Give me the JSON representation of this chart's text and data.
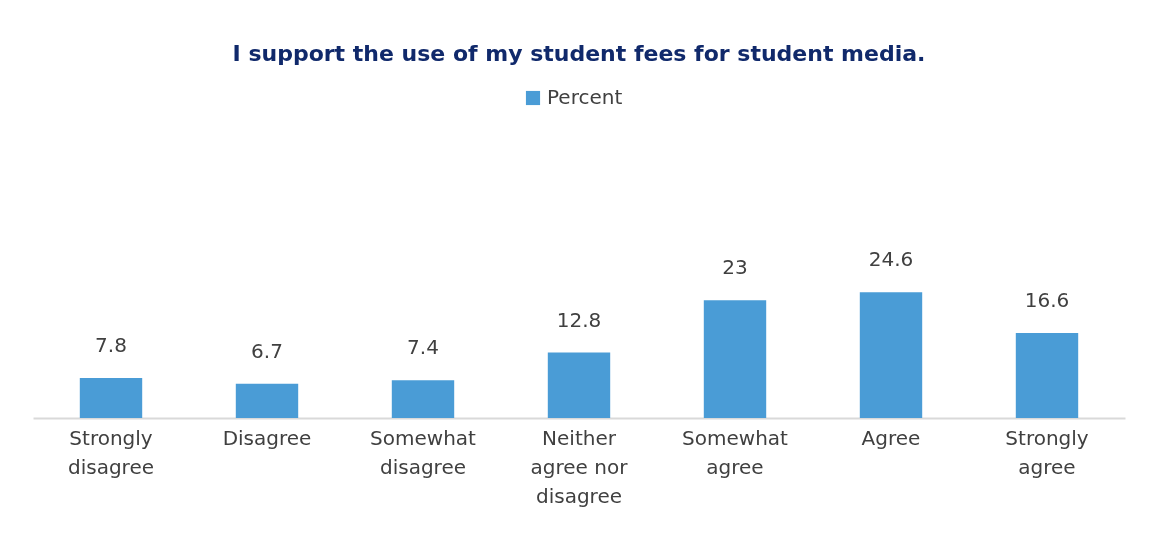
{
  "chart_data": {
    "type": "bar",
    "title": "I support the use of my student fees for student media.",
    "categories": [
      "Strongly disagree",
      "Disagree",
      "Somewhat disagree",
      "Neither agree nor disagree",
      "Somewhat agree",
      "Agree",
      "Strongly agree"
    ],
    "series": [
      {
        "name": "Percent",
        "color": "#4a9cd6",
        "values": [
          7.8,
          6.7,
          7.4,
          12.8,
          23,
          24.6,
          16.6
        ]
      }
    ],
    "data_labels": true,
    "legend": "top"
  }
}
